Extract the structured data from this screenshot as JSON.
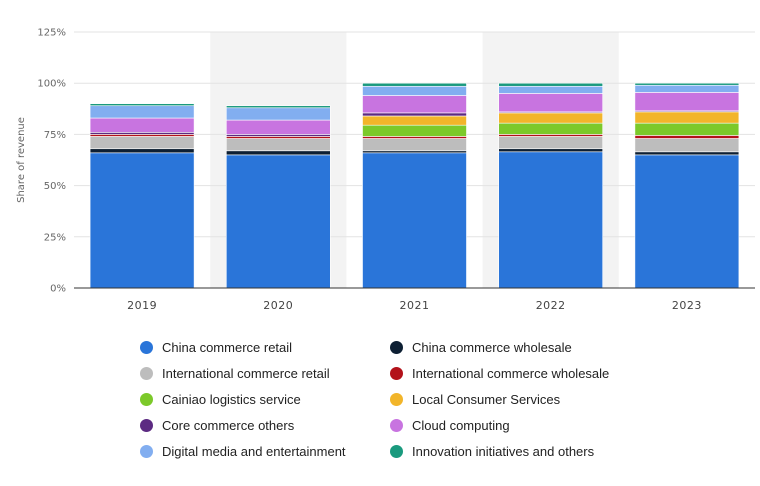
{
  "chart_data": {
    "type": "bar",
    "stacked": true,
    "ylabel": "Share of revenue",
    "ylim": [
      0,
      125
    ],
    "yticks": [
      "0%",
      "25%",
      "50%",
      "75%",
      "100%",
      "125%"
    ],
    "ytick_values": [
      0,
      25,
      50,
      75,
      100,
      125
    ],
    "categories": [
      "2019",
      "2020",
      "2021",
      "2022",
      "2023"
    ],
    "series": [
      {
        "name": "China commerce retail",
        "color": "#2a75d9",
        "values": [
          66,
          65,
          66,
          66.5,
          65
        ]
      },
      {
        "name": "China commerce wholesale",
        "color": "#0d1f33",
        "values": [
          2,
          2,
          1,
          1.5,
          1.5
        ]
      },
      {
        "name": "International commerce retail",
        "color": "#bdbdbd",
        "values": [
          6,
          6,
          6,
          6,
          6.5
        ]
      },
      {
        "name": "International commerce wholesale",
        "color": "#b3121a",
        "values": [
          1,
          1,
          1,
          1,
          1.5
        ]
      },
      {
        "name": "Cainiao logistics service",
        "color": "#7cc92a",
        "values": [
          0,
          0,
          5.5,
          5.5,
          6
        ]
      },
      {
        "name": "Local Consumer Services",
        "color": "#f2b52a",
        "values": [
          0,
          0,
          4.5,
          5,
          5.5
        ]
      },
      {
        "name": "Core commerce others",
        "color": "#5c2a82",
        "values": [
          1,
          1,
          1.5,
          0.5,
          0.5
        ]
      },
      {
        "name": "Cloud computing",
        "color": "#c874e0",
        "values": [
          7,
          7,
          8.5,
          9,
          9
        ]
      },
      {
        "name": "Digital media and entertainment",
        "color": "#82aef0",
        "values": [
          6,
          6,
          4.5,
          3.5,
          3.5
        ]
      },
      {
        "name": "Innovation initiatives and others",
        "color": "#1a9a7e",
        "values": [
          1,
          1,
          1.5,
          1.5,
          1
        ]
      }
    ],
    "legend_position": "bottom",
    "grid": true
  },
  "colors": {
    "highlight_band": "#f3f3f3",
    "grid": "#e3e3e3",
    "axis": "#333333"
  }
}
